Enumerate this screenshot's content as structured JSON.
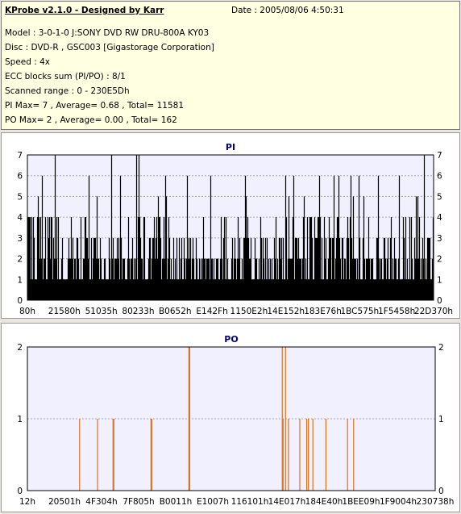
{
  "info": {
    "title": "KProbe v2.1.0 - Designed by Karr",
    "date": "Date : 2005/08/06 4:50:31",
    "model": "Model : 3-0-1-0 J:SONY    DVD RW DRU-800A  KY03",
    "disc": "Disc : DVD-R , GSC003 [Gigastorage Corporation]",
    "speed": "Speed : 4x",
    "ecc": "ECC blocks sum (PI/PO) : 8/1",
    "range": "Scanned range : 0 - 230E5Dh",
    "pi_stats": "PI Max= 7 , Average= 0.68 , Total= 11581",
    "po_stats": "PO Max= 2 , Average= 0.00 , Total= 162"
  },
  "colors": {
    "pi_bar": "#000000",
    "po_bar": "#e0701c",
    "plot_bg": "#f0f0ff",
    "title_text": "#000080"
  },
  "chart_data": [
    {
      "type": "bar",
      "title": "PI",
      "ylim": [
        0,
        7
      ],
      "yticks": [
        0,
        1,
        2,
        3,
        4,
        5,
        6,
        7
      ],
      "xticks": [
        "80h",
        "21580h",
        "51035h",
        "80233h",
        "B0652h",
        "E142Fh",
        "1150E2h",
        "14E152h",
        "183E76h",
        "1BC575h",
        "1F5458h",
        "22D370h"
      ],
      "max": 7,
      "average": 0.68,
      "total": 11581,
      "grid": true
    },
    {
      "type": "bar",
      "title": "PO",
      "ylim": [
        0,
        2
      ],
      "yticks": [
        0,
        1,
        2
      ],
      "xticks": [
        "12h",
        "20501h",
        "4F304h",
        "7F805h",
        "B0011h",
        "E1007h",
        "116101h",
        "14E017h",
        "184E40h",
        "1BEE09h",
        "1F9004h",
        "230738h"
      ],
      "max": 2,
      "average": 0.0,
      "total": 162,
      "grid": true,
      "events": [
        {
          "x": 0.128,
          "value": 1
        },
        {
          "x": 0.172,
          "value": 1
        },
        {
          "x": 0.21,
          "value": 1
        },
        {
          "x": 0.212,
          "value": 1
        },
        {
          "x": 0.303,
          "value": 1
        },
        {
          "x": 0.305,
          "value": 1
        },
        {
          "x": 0.396,
          "value": 2
        },
        {
          "x": 0.398,
          "value": 2
        },
        {
          "x": 0.625,
          "value": 2
        },
        {
          "x": 0.627,
          "value": 1
        },
        {
          "x": 0.633,
          "value": 2
        },
        {
          "x": 0.64,
          "value": 1
        },
        {
          "x": 0.668,
          "value": 1
        },
        {
          "x": 0.685,
          "value": 1
        },
        {
          "x": 0.689,
          "value": 1
        },
        {
          "x": 0.7,
          "value": 1
        },
        {
          "x": 0.732,
          "value": 1
        },
        {
          "x": 0.785,
          "value": 1
        },
        {
          "x": 0.8,
          "value": 1
        }
      ]
    }
  ]
}
